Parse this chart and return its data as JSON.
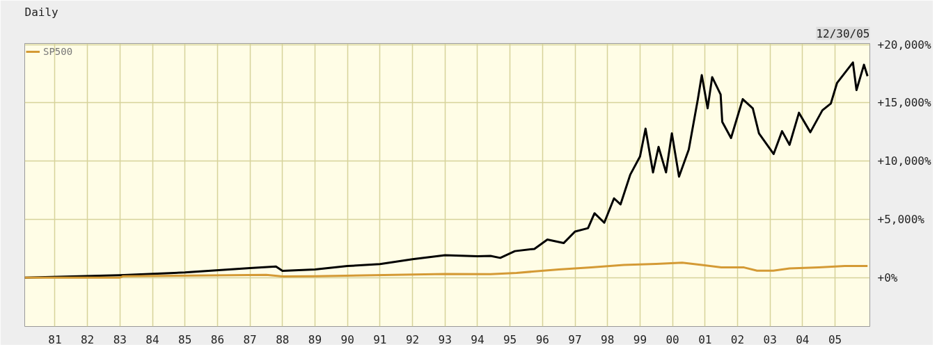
{
  "chart_data": {
    "type": "line",
    "title": "Daily",
    "annotations": [
      "12/30/05"
    ],
    "x": [
      1980.07,
      1983.0,
      1985.0,
      1987.0,
      1987.8,
      1988.0,
      1989.0,
      1990.0,
      1991.0,
      1992.0,
      1993.0,
      1994.0,
      1994.4,
      1994.7,
      1995.15,
      1995.75,
      1996.15,
      1996.65,
      1997.0,
      1997.4,
      1997.6,
      1997.9,
      1998.2,
      1998.4,
      1998.7,
      1999.0,
      1999.17,
      1999.4,
      1999.57,
      1999.8,
      1999.98,
      2000.2,
      2000.5,
      2000.78,
      2000.9,
      2001.08,
      2001.22,
      2001.48,
      2001.53,
      2001.8,
      2002.16,
      2002.47,
      2002.66,
      2003.11,
      2003.37,
      2003.6,
      2003.89,
      2004.24,
      2004.61,
      2004.87,
      2005.06,
      2005.55,
      2005.66,
      2005.89,
      2006.0
    ],
    "series": [
      {
        "color": "#000000",
        "values": [
          0,
          200,
          440,
          810,
          950,
          580,
          700,
          990,
          1160,
          1570,
          1920,
          1830,
          1860,
          1690,
          2270,
          2460,
          3260,
          2960,
          3950,
          4240,
          5520,
          4710,
          6800,
          6280,
          8840,
          10400,
          12790,
          9030,
          11220,
          9030,
          12380,
          8660,
          10990,
          15320,
          17380,
          14530,
          17210,
          15720,
          13370,
          11980,
          15320,
          14530,
          12380,
          10610,
          12570,
          11400,
          14150,
          12480,
          14360,
          14940,
          16700,
          18470,
          16100,
          18270,
          17290
        ]
      },
      {
        "name": "SP500",
        "color": "#d49a35",
        "x": [
          1980.07,
          1983.0,
          1983.1,
          1987.5,
          1988.0,
          1989.0,
          1993.0,
          1994.4,
          1995.2,
          1996.5,
          1997.5,
          1998.5,
          1999.5,
          2000.3,
          2000.9,
          2001.5,
          2002.2,
          2002.6,
          2003.1,
          2003.6,
          2004.5,
          2005.3,
          2006.0
        ],
        "values": [
          0,
          0,
          120,
          230,
          100,
          120,
          310,
          290,
          400,
          700,
          870,
          1080,
          1180,
          1280,
          1080,
          870,
          870,
          590,
          590,
          780,
          870,
          990,
          990
        ]
      }
    ],
    "xlim": [
      1980.07,
      2006.07
    ],
    "ylim": [
      -4200,
      20100
    ],
    "xticks": [
      {
        "value": 1981,
        "label": "81"
      },
      {
        "value": 1982,
        "label": "82"
      },
      {
        "value": 1983,
        "label": "83"
      },
      {
        "value": 1984,
        "label": "84"
      },
      {
        "value": 1985,
        "label": "85"
      },
      {
        "value": 1986,
        "label": "86"
      },
      {
        "value": 1987,
        "label": "87"
      },
      {
        "value": 1988,
        "label": "88"
      },
      {
        "value": 1989,
        "label": "89"
      },
      {
        "value": 1990,
        "label": "90"
      },
      {
        "value": 1991,
        "label": "91"
      },
      {
        "value": 1992,
        "label": "92"
      },
      {
        "value": 1993,
        "label": "93"
      },
      {
        "value": 1994,
        "label": "94"
      },
      {
        "value": 1995,
        "label": "95"
      },
      {
        "value": 1996,
        "label": "96"
      },
      {
        "value": 1997,
        "label": "97"
      },
      {
        "value": 1998,
        "label": "98"
      },
      {
        "value": 1999,
        "label": "99"
      },
      {
        "value": 2000,
        "label": "00"
      },
      {
        "value": 2001,
        "label": "01"
      },
      {
        "value": 2002,
        "label": "02"
      },
      {
        "value": 2003,
        "label": "03"
      },
      {
        "value": 2004,
        "label": "04"
      },
      {
        "value": 2005,
        "label": "05"
      }
    ],
    "yticks": [
      {
        "value": 0,
        "label": "+0%"
      },
      {
        "value": 5000,
        "label": "+5,000%"
      },
      {
        "value": 10000,
        "label": "+10,000%"
      },
      {
        "value": 15000,
        "label": "+15,000%"
      },
      {
        "value": 20000,
        "label": "+20,000%"
      }
    ],
    "grid": true,
    "legend": "top left",
    "line_style": "solid",
    "marker": "none"
  }
}
